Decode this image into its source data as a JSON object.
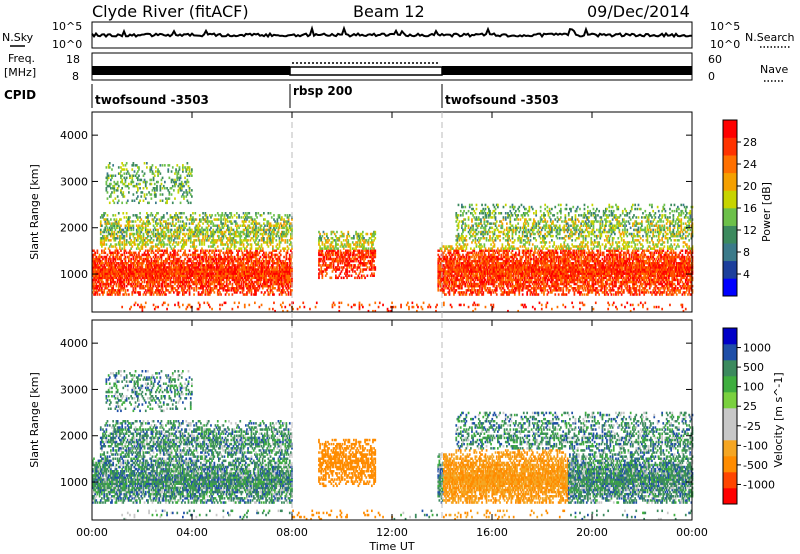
{
  "header": {
    "station": "Clyde River (fitACF)",
    "beam": "Beam 12",
    "date": "09/Dec/2014"
  },
  "top_panels": {
    "nsky_label": "N.Sky",
    "nsearch_label": "N.Search",
    "noise_ticks": [
      "10^5",
      "10^0"
    ],
    "freq_label_1": "Freq.",
    "freq_label_2": "[MHz]",
    "freq_ticks": [
      "18",
      "8"
    ],
    "nave_label": "Nave",
    "nave_ticks": [
      "60",
      "0"
    ],
    "cpid_label": "CPID",
    "cpid_segments": [
      {
        "name": "twofsound -3503",
        "start_h": 0,
        "end_h": 8
      },
      {
        "name": "rbsp 200",
        "start_h": 8,
        "end_h": 14
      },
      {
        "name": "twofsound -3503",
        "start_h": 14,
        "end_h": 24
      }
    ]
  },
  "colors": {
    "power_scale": [
      "#0000ff",
      "#1c3f9c",
      "#3b7a8a",
      "#3c8a5e",
      "#6cc04a",
      "#c7d400",
      "#f5a000",
      "#ff7000",
      "#ff3300",
      "#ff0000"
    ],
    "velocity_scale": [
      "#ff0000",
      "#ff4500",
      "#ff8c00",
      "#f5a623",
      "#c8c8c8",
      "#c8c8c8",
      "#7ad13f",
      "#3fae3f",
      "#3c8a5e",
      "#1f4fa8",
      "#0000c8"
    ]
  },
  "chart_data": [
    {
      "type": "heatmap",
      "name": "power-panel",
      "ylabel": "Slant Range [km]",
      "ylim": [
        180,
        4500
      ],
      "xlim": [
        0,
        24
      ],
      "y_ticks": [
        1000,
        2000,
        3000,
        4000
      ],
      "colorbar_label": "Power [dB]",
      "colorbar_ticks": [
        "4",
        "8",
        "12",
        "16",
        "20",
        "24",
        "28"
      ],
      "colorbar_range": [
        0,
        30
      ]
    },
    {
      "type": "heatmap",
      "name": "velocity-panel",
      "ylabel": "Slant Range [km]",
      "ylim": [
        180,
        4500
      ],
      "xlim": [
        0,
        24
      ],
      "y_ticks": [
        1000,
        2000,
        3000,
        4000
      ],
      "colorbar_label": "Velocity [m s^-1]",
      "colorbar_ticks": [
        "1000",
        "500",
        "100",
        "25",
        "-25",
        "-100",
        "-500",
        "-1000"
      ],
      "colorbar_range": [
        -1000,
        1000
      ]
    }
  ],
  "x_axis": {
    "label": "Time UT",
    "ticks": [
      "00:00",
      "04:00",
      "08:00",
      "12:00",
      "16:00",
      "20:00",
      "00:00"
    ],
    "tick_hours": [
      0,
      4,
      8,
      12,
      16,
      20,
      24
    ],
    "mode_change_hours": [
      8,
      14
    ]
  }
}
